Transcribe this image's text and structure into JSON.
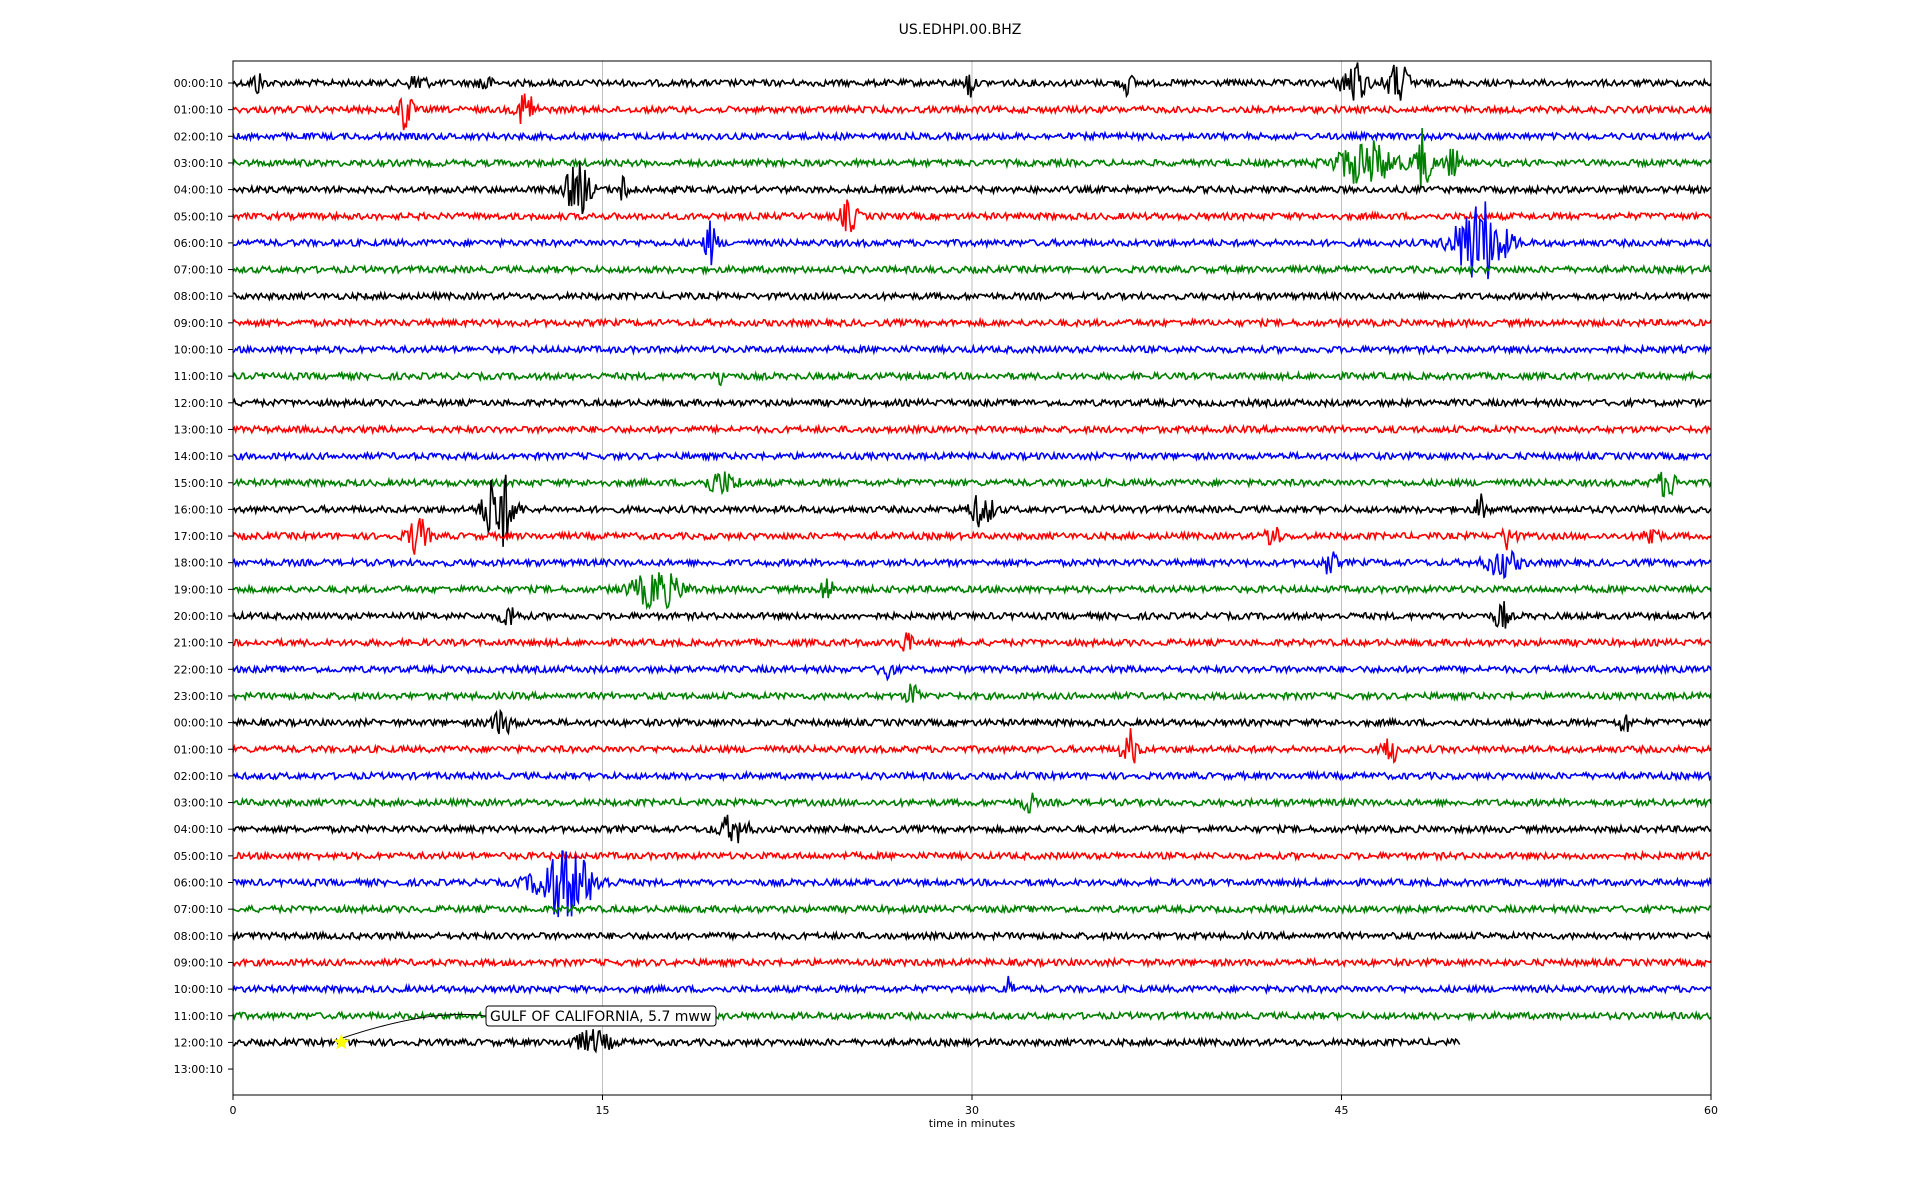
{
  "chart_data": {
    "type": "line",
    "title": "US.EDHPI.00.BHZ",
    "xlabel": "time in minutes",
    "xlim": [
      0,
      60
    ],
    "xticks": [
      0,
      15,
      30,
      45,
      60
    ],
    "grid_x": true,
    "trace_colors": [
      "#000000",
      "#ff0000",
      "#0000ff",
      "#008000"
    ],
    "row_labels": [
      "00:00:10",
      "01:00:10",
      "02:00:10",
      "03:00:10",
      "04:00:10",
      "05:00:10",
      "06:00:10",
      "07:00:10",
      "08:00:10",
      "09:00:10",
      "10:00:10",
      "11:00:10",
      "12:00:10",
      "13:00:10",
      "14:00:10",
      "15:00:10",
      "16:00:10",
      "17:00:10",
      "18:00:10",
      "19:00:10",
      "20:00:10",
      "21:00:10",
      "22:00:10",
      "23:00:10",
      "00:00:10",
      "01:00:10",
      "02:00:10",
      "03:00:10",
      "04:00:10",
      "05:00:10",
      "06:00:10",
      "07:00:10",
      "08:00:10",
      "09:00:10",
      "10:00:10",
      "11:00:10",
      "12:00:10",
      "13:00:10"
    ],
    "trace_rows": 37,
    "last_trace_end_minute": 49.8,
    "events": [
      {
        "row": 0,
        "minute": 1,
        "amp": 0.4,
        "width": 0.3
      },
      {
        "row": 0,
        "minute": 7.5,
        "amp": 0.4,
        "width": 0.4
      },
      {
        "row": 0,
        "minute": 10.2,
        "amp": 0.4,
        "width": 0.3
      },
      {
        "row": 0,
        "minute": 29.9,
        "amp": 0.6,
        "width": 0.2
      },
      {
        "row": 0,
        "minute": 36.3,
        "amp": 0.4,
        "width": 0.3
      },
      {
        "row": 0,
        "minute": 45.5,
        "amp": 0.8,
        "width": 0.6
      },
      {
        "row": 0,
        "minute": 47.3,
        "amp": 0.7,
        "width": 0.6
      },
      {
        "row": 1,
        "minute": 7.0,
        "amp": 0.9,
        "width": 0.3
      },
      {
        "row": 1,
        "minute": 11.9,
        "amp": 0.8,
        "width": 0.4
      },
      {
        "row": 3,
        "minute": 46,
        "amp": 0.8,
        "width": 1.5
      },
      {
        "row": 3,
        "minute": 48.3,
        "amp": 1.2,
        "width": 0.4
      },
      {
        "row": 3,
        "minute": 49.5,
        "amp": 0.5,
        "width": 0.4
      },
      {
        "row": 4,
        "minute": 14,
        "amp": 1.0,
        "width": 0.6
      },
      {
        "row": 4,
        "minute": 15.9,
        "amp": 0.5,
        "width": 0.3
      },
      {
        "row": 5,
        "minute": 25,
        "amp": 0.6,
        "width": 0.4
      },
      {
        "row": 6,
        "minute": 19.4,
        "amp": 0.8,
        "width": 0.3
      },
      {
        "row": 6,
        "minute": 50.6,
        "amp": 1.6,
        "width": 1.2
      },
      {
        "row": 11,
        "minute": 19.8,
        "amp": 0.4,
        "width": 0.2
      },
      {
        "row": 15,
        "minute": 19.8,
        "amp": 0.4,
        "width": 0.8
      },
      {
        "row": 15,
        "minute": 58.2,
        "amp": 0.5,
        "width": 0.5
      },
      {
        "row": 16,
        "minute": 10.8,
        "amp": 1.6,
        "width": 0.7
      },
      {
        "row": 16,
        "minute": 30.4,
        "amp": 0.6,
        "width": 0.6
      },
      {
        "row": 16,
        "minute": 50.7,
        "amp": 0.5,
        "width": 0.3
      },
      {
        "row": 17,
        "minute": 7.5,
        "amp": 0.7,
        "width": 0.5
      },
      {
        "row": 17,
        "minute": 42.2,
        "amp": 0.6,
        "width": 0.3
      },
      {
        "row": 17,
        "minute": 51.8,
        "amp": 0.6,
        "width": 0.3
      },
      {
        "row": 17,
        "minute": 57.6,
        "amp": 0.6,
        "width": 0.3
      },
      {
        "row": 18,
        "minute": 51.5,
        "amp": 0.5,
        "width": 0.8
      },
      {
        "row": 18,
        "minute": 44.5,
        "amp": 0.4,
        "width": 0.4
      },
      {
        "row": 19,
        "minute": 17.2,
        "amp": 0.7,
        "width": 1.2
      },
      {
        "row": 19,
        "minute": 24.1,
        "amp": 0.5,
        "width": 0.3
      },
      {
        "row": 20,
        "minute": 11.2,
        "amp": 0.4,
        "width": 0.4
      },
      {
        "row": 20,
        "minute": 51.5,
        "amp": 0.6,
        "width": 0.3
      },
      {
        "row": 21,
        "minute": 27.3,
        "amp": 0.4,
        "width": 0.3
      },
      {
        "row": 22,
        "minute": 26.5,
        "amp": 0.5,
        "width": 0.3
      },
      {
        "row": 23,
        "minute": 27.6,
        "amp": 0.5,
        "width": 0.3
      },
      {
        "row": 24,
        "minute": 10.9,
        "amp": 0.4,
        "width": 0.6
      },
      {
        "row": 24,
        "minute": 56.5,
        "amp": 0.4,
        "width": 0.3
      },
      {
        "row": 25,
        "minute": 36.4,
        "amp": 0.7,
        "width": 0.4
      },
      {
        "row": 25,
        "minute": 47.0,
        "amp": 0.5,
        "width": 0.4
      },
      {
        "row": 27,
        "minute": 32.3,
        "amp": 0.4,
        "width": 0.3
      },
      {
        "row": 28,
        "minute": 20.3,
        "amp": 0.5,
        "width": 0.7
      },
      {
        "row": 30,
        "minute": 13.5,
        "amp": 1.3,
        "width": 1.4
      },
      {
        "row": 34,
        "minute": 31.5,
        "amp": 0.5,
        "width": 0.2
      },
      {
        "row": 36,
        "minute": 14.6,
        "amp": 0.4,
        "width": 0.9
      }
    ],
    "annotation": {
      "text": "GULF OF CALIFORNIA, 5.7 mww",
      "row": 36,
      "minute": 4.4,
      "marker_color": "#ffff00"
    }
  }
}
